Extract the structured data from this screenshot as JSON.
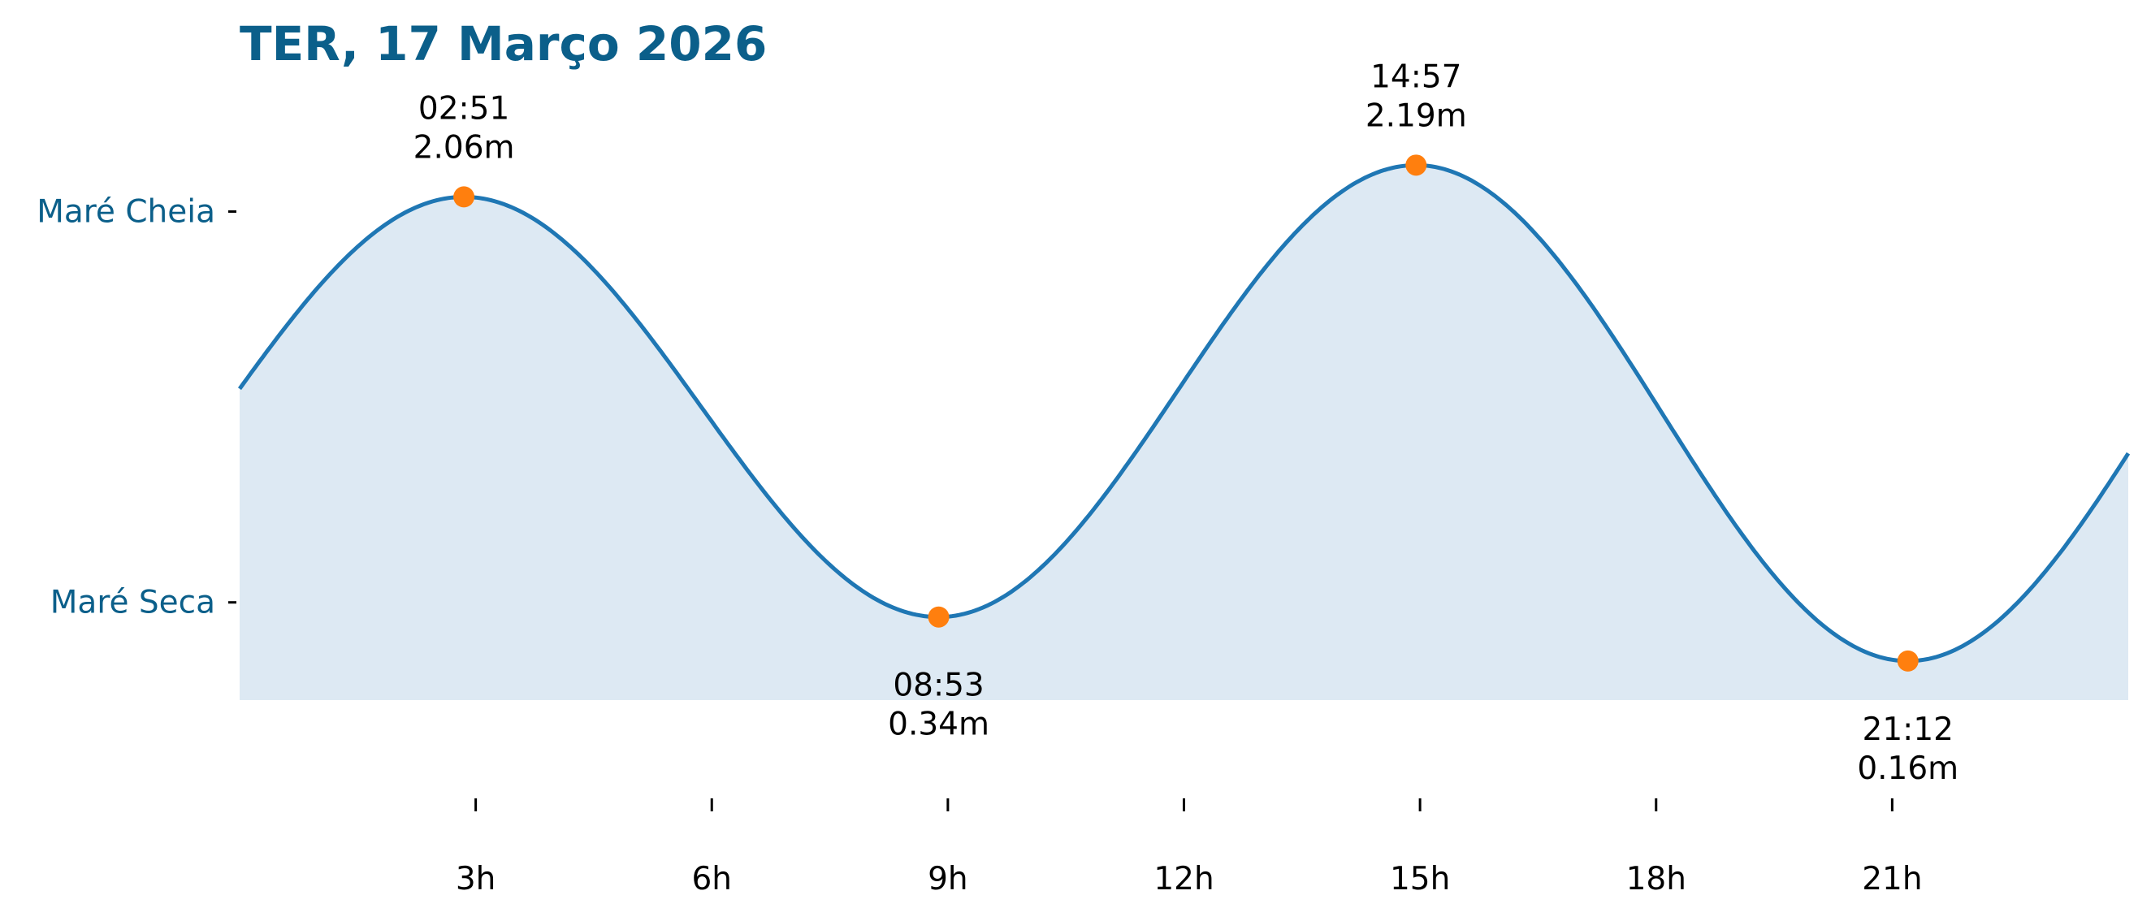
{
  "chart_data": {
    "type": "area",
    "title": "TER, 17 Março 2026",
    "xlabel": "",
    "ylabel": "",
    "x_unit": "hour of day",
    "y_unit": "m",
    "xlim": [
      0,
      24
    ],
    "ylim": [
      0.0,
      2.6
    ],
    "x_ticks": [
      3,
      6,
      9,
      12,
      15,
      18,
      21
    ],
    "x_tick_labels": [
      "3h",
      "6h",
      "9h",
      "12h",
      "15h",
      "18h",
      "21h"
    ],
    "y_tick_labels": [
      {
        "label": "Maré Cheia",
        "value": 2.0
      },
      {
        "label": "Maré Seca",
        "value": 0.4
      }
    ],
    "grid": false,
    "tide_events": [
      {
        "time": "02:51",
        "height_label": "2.06m",
        "hour": 2.85,
        "height": 2.06,
        "type": "high"
      },
      {
        "time": "08:53",
        "height_label": "0.34m",
        "hour": 8.883,
        "height": 0.34,
        "type": "low"
      },
      {
        "time": "14:57",
        "height_label": "2.19m",
        "hour": 14.95,
        "height": 2.19,
        "type": "high"
      },
      {
        "time": "21:12",
        "height_label": "0.16m",
        "hour": 21.2,
        "height": 0.16,
        "type": "low"
      }
    ],
    "colors": {
      "title": "#0b5f8a",
      "y_labels": "#0b5f8a",
      "line": "#1f77b4",
      "fill": "#dde9f3",
      "markers": "#ff7f0e",
      "text": "#000000"
    }
  }
}
